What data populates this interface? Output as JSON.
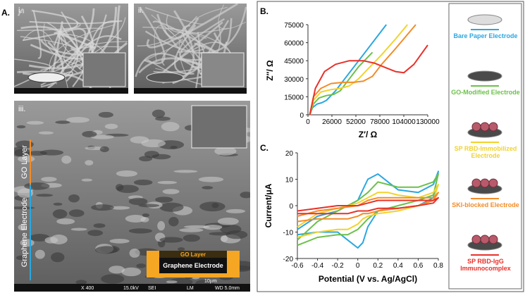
{
  "panel_labels": {
    "a": "A.",
    "b": "B.",
    "c": "C.",
    "i": "i.",
    "ii": "ii.",
    "iii": "iii."
  },
  "sem": {
    "layer_labels": [
      "GO Layer",
      "Graphene Electrode"
    ],
    "schematic_labels": [
      "GO Layer",
      "Graphene Electrode"
    ],
    "scale_bar": "10µm",
    "footer": [
      "X 400",
      "15.0kV",
      "SEI",
      "LM",
      "WD 5.0mm"
    ]
  },
  "chart_data": [
    {
      "type": "line",
      "xlabel": "Z′/ Ω",
      "ylabel": "Z″/ Ω",
      "xlim": [
        0,
        130000
      ],
      "xticks": [
        0,
        26000,
        52000,
        78000,
        104000,
        130000
      ],
      "ylim": [
        0,
        75000
      ],
      "yticks": [
        0,
        15000,
        30000,
        45000,
        60000,
        75000
      ],
      "series": [
        {
          "color": "#2aa7e0",
          "x": [
            2000,
            5000,
            10000,
            15000,
            20000,
            30000,
            45000,
            60000,
            85000
          ],
          "values": [
            0,
            6000,
            9000,
            10000,
            12000,
            20000,
            35000,
            50000,
            75000
          ]
        },
        {
          "color": "#6cc04a",
          "x": [
            2000,
            6000,
            12000,
            20000,
            28000,
            35000,
            45000,
            55000,
            70000
          ],
          "values": [
            0,
            9000,
            14000,
            16000,
            17000,
            20000,
            30000,
            40000,
            52000
          ]
        },
        {
          "color": "#f2d22e",
          "x": [
            2000,
            6000,
            14000,
            25000,
            35000,
            45000,
            55000,
            65000,
            80000,
            95000,
            108000
          ],
          "values": [
            0,
            12000,
            19000,
            21000,
            22000,
            24000,
            30000,
            38000,
            50000,
            63000,
            75000
          ]
        },
        {
          "color": "#f28c28",
          "x": [
            2000,
            6000,
            14000,
            25000,
            38000,
            50000,
            60000,
            70000,
            80000,
            95000,
            117000
          ],
          "values": [
            0,
            15000,
            22000,
            26000,
            27000,
            27000,
            28000,
            32000,
            42000,
            55000,
            75000
          ]
        },
        {
          "color": "#e8312a",
          "x": [
            2000,
            8000,
            18000,
            30000,
            45000,
            60000,
            72000,
            85000,
            95000,
            104000,
            115000,
            130000
          ],
          "values": [
            0,
            22000,
            36000,
            42000,
            45000,
            45000,
            43000,
            39000,
            36000,
            35000,
            42000,
            58000
          ]
        }
      ]
    },
    {
      "type": "line",
      "xlabel": "Potential (V vs. Ag/AgCl)",
      "ylabel": "Current/μA",
      "xlim": [
        -0.6,
        0.8
      ],
      "xticks": [
        -0.6,
        -0.4,
        -0.2,
        0,
        0.2,
        0.4,
        0.6,
        0.8
      ],
      "ylim": [
        -20,
        20
      ],
      "yticks": [
        -20,
        -10,
        0,
        10,
        20
      ],
      "x": [
        -0.6,
        -0.4,
        -0.2,
        0,
        0.1,
        0.2,
        0.3,
        0.4,
        0.6,
        0.75,
        0.8,
        0.75,
        0.6,
        0.4,
        0.2,
        0.1,
        0.05,
        0,
        -0.1,
        -0.2,
        -0.4,
        -0.6
      ],
      "series": [
        {
          "name": "Bare Paper Electrode",
          "color": "#2aa7e0",
          "values": [
            -9,
            -4,
            -2,
            2,
            10,
            12,
            9,
            6,
            5,
            8,
            13,
            3,
            0,
            -1,
            -2,
            -8,
            -14,
            -16,
            -13,
            -10,
            -10,
            -11
          ]
        },
        {
          "name": "GO-Modified Electrode",
          "color": "#6cc04a",
          "values": [
            -13,
            -6,
            -2,
            2,
            5,
            9,
            8,
            7,
            7,
            9,
            12,
            4,
            2,
            0,
            -2,
            -5,
            -7,
            -9,
            -11,
            -11,
            -12,
            -15
          ]
        },
        {
          "name": "SP RBD-Immobilized Electrode",
          "color": "#f2d22e",
          "values": [
            -8,
            -3,
            -1,
            1,
            3,
            5,
            5,
            4,
            3,
            5,
            8,
            2,
            0,
            -2,
            -3,
            -4,
            -5,
            -7,
            -9,
            -9,
            -10,
            -12
          ]
        },
        {
          "name": "SKI-blocked Electrode",
          "color": "#f28c28",
          "values": [
            -4,
            -2,
            -1,
            0,
            2,
            3,
            3,
            3,
            3,
            3,
            5,
            2,
            0,
            -1,
            -2,
            -3,
            -3,
            -4,
            -5,
            -5,
            -5,
            -6
          ]
        },
        {
          "name": "SP RBD-IgG Immunocomplex",
          "color": "#e8312a",
          "values": [
            -2,
            -1,
            0,
            0,
            1,
            2,
            2,
            2,
            2,
            2,
            3,
            1,
            0,
            -1,
            -1,
            -2,
            -2,
            -2,
            -3,
            -3,
            -3,
            -3
          ]
        }
      ]
    }
  ]
}
